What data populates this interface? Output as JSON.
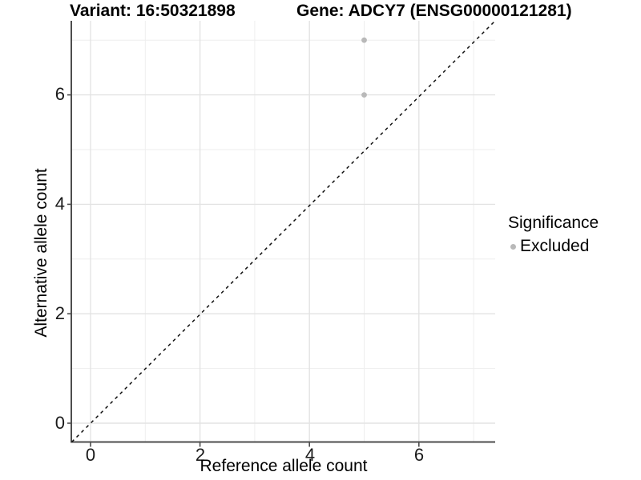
{
  "header": {
    "variant_title": "Variant: 16:50321898",
    "gene_title": "Gene: ADCY7 (ENSG00000121281)"
  },
  "axes": {
    "x": {
      "label": "Reference allele count",
      "tick_labels": [
        "0",
        "2",
        "4",
        "6"
      ]
    },
    "y": {
      "label": "Alternative allele count",
      "tick_labels": [
        "0",
        "2",
        "4",
        "6"
      ]
    }
  },
  "legend": {
    "title": "Significance",
    "items": [
      {
        "label": "Excluded",
        "color": "#b9b9b9"
      }
    ]
  },
  "colors": {
    "background": "#ffffff",
    "major_grid": "#e3e3e3",
    "minor_grid": "#eeeeee",
    "axis_line": "#4d4d4d",
    "identity_line": "#111111",
    "point": "#b9b9b9",
    "text": "#000000"
  },
  "chart_data": {
    "type": "scatter",
    "title": "Variant: 16:50321898    Gene: ADCY7 (ENSG00000121281)",
    "xlabel": "Reference allele count",
    "ylabel": "Alternative allele count",
    "xlim": [
      -0.35,
      7.35
    ],
    "ylim": [
      -0.35,
      7.35
    ],
    "x_ticks": [
      0,
      2,
      4,
      6
    ],
    "y_ticks": [
      0,
      2,
      4,
      6
    ],
    "x_minor_ticks": [
      1,
      3,
      5,
      7
    ],
    "y_minor_ticks": [
      1,
      3,
      5,
      7
    ],
    "grid": {
      "major": true,
      "minor": true
    },
    "legend_position": "right",
    "identity_line": {
      "from": [
        -0.35,
        -0.35
      ],
      "to": [
        7.35,
        7.35
      ],
      "style": "dashed",
      "color": "#111111"
    },
    "series": [
      {
        "name": "Excluded",
        "color": "#b9b9b9",
        "points": [
          [
            5,
            7
          ],
          [
            5,
            6
          ]
        ]
      }
    ]
  }
}
